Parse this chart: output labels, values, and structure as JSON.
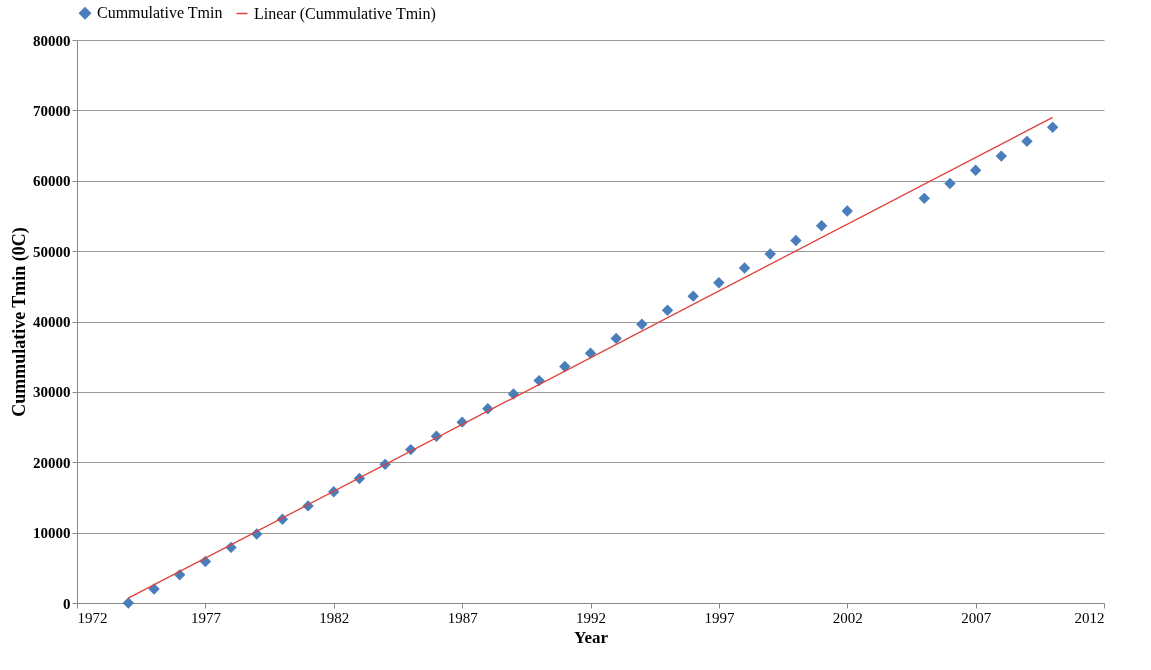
{
  "chart_data": {
    "type": "scatter",
    "xlabel": "Year",
    "ylabel": "Cummulative Tmin (0C)",
    "grid": "y",
    "legend": "top",
    "xlim": [
      1972,
      2012
    ],
    "xticks": [
      1972,
      1977,
      1982,
      1987,
      1992,
      1997,
      2002,
      2007,
      2012
    ],
    "ylim": [
      0,
      80000
    ],
    "yticks": [
      0,
      10000,
      20000,
      30000,
      40000,
      50000,
      60000,
      70000,
      80000
    ],
    "series": [
      {
        "name": "Cummulative Tmin",
        "color": "#4a7ebb",
        "marker": "diamond",
        "x": [
          1974,
          1975,
          1976,
          1977,
          1978,
          1979,
          1980,
          1981,
          1982,
          1983,
          1984,
          1985,
          1986,
          1987,
          1988,
          1989,
          1990,
          1991,
          1992,
          1993,
          1994,
          1995,
          1996,
          1997,
          1998,
          1999,
          2000,
          2001,
          2002,
          2005,
          2006,
          2007,
          2008,
          2009,
          2010
        ],
        "values": [
          0,
          2000,
          4000,
          5900,
          7900,
          9800,
          11900,
          13800,
          15800,
          17700,
          19700,
          21800,
          23700,
          25700,
          27600,
          29700,
          31600,
          33600,
          35500,
          37600,
          39600,
          41600,
          43600,
          45500,
          47600,
          49600,
          51500,
          53600,
          55700,
          57500,
          59600,
          61500,
          63500,
          65600,
          67600
        ]
      },
      {
        "name": "Linear (Cummulative Tmin)",
        "type": "line",
        "color": "#e0403a",
        "marker": "none",
        "x": [
          1974,
          2010
        ],
        "values": [
          700,
          69000
        ]
      }
    ]
  }
}
